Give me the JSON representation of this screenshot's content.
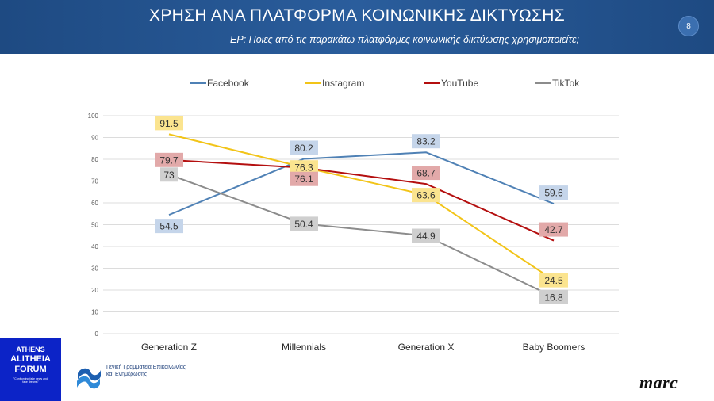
{
  "header": {
    "title": "ΧΡΗΣΗ ΑΝΑ ΠΛΑΤΦΟΡΜΑ ΚΟΙΝΩΝΙΚΗΣ ΔΙΚΤΥΩΣΗΣ",
    "subtitle": "ΕΡ: Ποιες από τις παρακάτω πλατφόρμες κοινωνικής δικτύωσης χρησιμοποιείτε;",
    "page_number": "8"
  },
  "footer": {
    "athens_logo_lines": [
      "ATHENS",
      "ALITHEIA",
      "FORUM"
    ],
    "athens_tagline": "\"Confronting fake news and fake dreams\"",
    "gov_text_line1": "Γενική Γραμματεία Επικοινωνίας",
    "gov_text_line2": "και Ενημέρωσης",
    "marc_logo": "marc"
  },
  "chart_data": {
    "type": "line",
    "categories": [
      "Generation Z",
      "Millennials",
      "Generation X",
      "Baby Boomers"
    ],
    "ylim": [
      0,
      100
    ],
    "yticks": [
      0,
      10,
      20,
      30,
      40,
      50,
      60,
      70,
      80,
      90,
      100
    ],
    "grid": true,
    "legend_position": "top",
    "series": [
      {
        "name": "Facebook",
        "values": [
          54.5,
          80.2,
          83.2,
          59.6
        ],
        "color": "#4f81b5",
        "label_bg": "#c5d5ea",
        "label_pos": [
          "below",
          "above",
          "above",
          "above"
        ]
      },
      {
        "name": "Instagram",
        "values": [
          91.5,
          76.3,
          63.6,
          24.5
        ],
        "color": "#f2c418",
        "label_bg": "#fbe48f",
        "label_pos": [
          "above",
          "center",
          "center",
          "center"
        ]
      },
      {
        "name": "YouTube",
        "values": [
          79.7,
          76.1,
          68.7,
          42.7
        ],
        "color": "#b40f0f",
        "label_bg": "#e2a9a9",
        "label_pos": [
          "center",
          "below",
          "above",
          "above"
        ]
      },
      {
        "name": "TikTok",
        "values": [
          73,
          50.4,
          44.9,
          16.8
        ],
        "color": "#8c8c8c",
        "label_bg": "#cfcfcf",
        "label_pos": [
          "center",
          "center",
          "center",
          "center"
        ]
      }
    ]
  }
}
